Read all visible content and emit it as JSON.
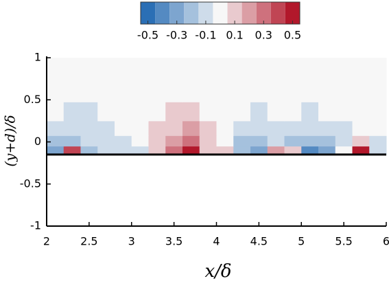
{
  "chart_data": {
    "type": "contour",
    "x_label": "x/δ",
    "y_label": "(y+d)/δ",
    "xlim": [
      2,
      6
    ],
    "ylim": [
      -1,
      1
    ],
    "xticks": [
      2,
      2.5,
      3,
      3.5,
      4,
      4.5,
      5,
      5.5,
      6
    ],
    "yticks": [
      -1,
      -0.5,
      0,
      0.5,
      1
    ],
    "wall_y": -0.15,
    "x": [
      2.1,
      2.3,
      2.5,
      2.7,
      2.9,
      3.1,
      3.3,
      3.5,
      3.7,
      3.9,
      4.1,
      4.3,
      4.5,
      4.7,
      4.9,
      5.1,
      5.3,
      5.5,
      5.7,
      5.9
    ],
    "y": [
      -0.1,
      0,
      0.15,
      0.35,
      0.6,
      0.875
    ],
    "z": [
      [
        -0.3,
        0.4,
        -0.2,
        -0.15,
        -0.15,
        -0.1,
        0.1,
        0.3,
        0.5,
        0.1,
        0.05,
        -0.2,
        -0.3,
        0.2,
        0.1,
        -0.4,
        -0.3,
        0,
        0.5,
        -0.1
      ],
      [
        -0.25,
        -0.2,
        -0.15,
        -0.1,
        -0.1,
        -0.05,
        0.05,
        0.15,
        0.25,
        0.05,
        -0.05,
        -0.2,
        -0.25,
        -0.1,
        -0.2,
        -0.25,
        -0.2,
        -0.1,
        0.1,
        -0.1
      ],
      [
        -0.1,
        -0.15,
        -0.1,
        -0.1,
        -0.05,
        0,
        0.05,
        0.1,
        0.15,
        0.05,
        -0.05,
        -0.1,
        -0.15,
        -0.1,
        -0.1,
        -0.15,
        -0.1,
        -0.1,
        0,
        -0.05
      ],
      [
        -0.05,
        -0.1,
        -0.1,
        -0.05,
        -0.05,
        0,
        0.02,
        0.05,
        0.08,
        0.02,
        -0.05,
        -0.05,
        -0.1,
        -0.05,
        -0.05,
        -0.1,
        -0.05,
        -0.05,
        -0.05,
        -0.05
      ],
      [
        -0.05,
        -0.05,
        -0.05,
        -0.05,
        -0.03,
        0,
        0,
        0.02,
        0.02,
        0,
        -0.03,
        -0.05,
        -0.05,
        -0.05,
        -0.05,
        -0.05,
        -0.05,
        -0.03,
        -0.03,
        -0.03
      ],
      [
        -0.03,
        -0.03,
        -0.03,
        -0.03,
        -0.03,
        -0.02,
        -0.02,
        0,
        0,
        -0.02,
        -0.03,
        -0.03,
        -0.03,
        -0.03,
        -0.03,
        -0.03,
        -0.03,
        -0.03,
        -0.03,
        -0.03
      ]
    ],
    "levels": [
      -0.55,
      -0.45,
      -0.35,
      -0.25,
      -0.15,
      -0.05,
      0.05,
      0.15,
      0.25,
      0.35,
      0.45,
      0.55
    ],
    "colorbar_ticks": [
      -0.5,
      -0.3,
      -0.1,
      0.1,
      0.3,
      0.5
    ],
    "colors": {
      "low": "#2b6fb5",
      "mid": "#f7f7f7",
      "high": "#b2182b"
    }
  }
}
